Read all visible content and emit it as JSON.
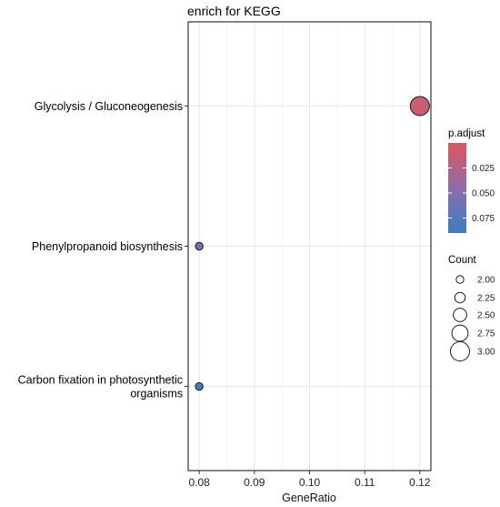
{
  "chart_data": {
    "type": "scatter",
    "title": "enrich for KEGG",
    "xlabel": "GeneRatio",
    "ylabel": "",
    "xlim": [
      0.078,
      0.122
    ],
    "x_ticks": [
      0.08,
      0.09,
      0.1,
      0.11,
      0.12
    ],
    "x_tick_labels": [
      "0.08",
      "0.09",
      "0.10",
      "0.11",
      "0.12"
    ],
    "grid": true,
    "categories": [
      {
        "label_lines": [
          "Glycolysis / Gluconeogenesis"
        ]
      },
      {
        "label_lines": [
          "Phenylpropanoid biosynthesis"
        ]
      },
      {
        "label_lines": [
          "Carbon fixation in photosynthetic",
          "organisms"
        ]
      }
    ],
    "points": [
      {
        "category": 0,
        "gene_ratio": 0.12,
        "p_adjust": 0.012,
        "count": 3
      },
      {
        "category": 1,
        "gene_ratio": 0.08,
        "p_adjust": 0.063,
        "count": 2
      },
      {
        "category": 2,
        "gene_ratio": 0.08,
        "p_adjust": 0.088,
        "count": 2
      }
    ],
    "color_legend": {
      "title": "p.adjust",
      "min": 0.0,
      "max": 0.09,
      "ticks": [
        0.025,
        0.05,
        0.075
      ],
      "tick_labels": [
        "0.025",
        "0.050",
        "0.075"
      ],
      "low_color": "#e0575b",
      "high_color": "#3a7ec0"
    },
    "size_legend": {
      "title": "Count",
      "values": [
        2.0,
        2.25,
        2.5,
        2.75,
        3.0
      ],
      "labels": [
        "2.00",
        "2.25",
        "2.50",
        "2.75",
        "3.00"
      ]
    },
    "legend_position": "right"
  }
}
